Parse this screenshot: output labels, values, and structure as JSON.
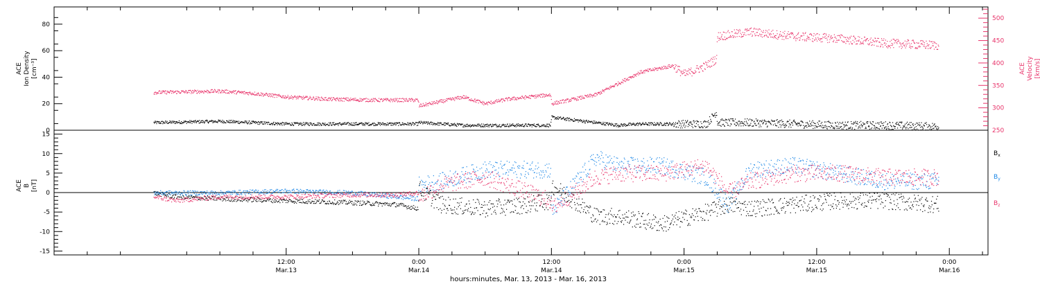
{
  "chart_data": [
    {
      "type": "scatter",
      "panel": "top",
      "ylabel_left": [
        "ACE",
        "Ion Density",
        "[cm⁻³]"
      ],
      "ylabel_right": [
        "ACE",
        "Velocity",
        "[km/s]"
      ],
      "ylim_left": [
        0,
        93
      ],
      "ylim_right": [
        250,
        525
      ],
      "yticks_left": [
        "0",
        "20",
        "40",
        "60",
        "80"
      ],
      "yticks_right": [
        "250",
        "300",
        "350",
        "400",
        "450",
        "500"
      ],
      "x_hours_since_start": [
        0,
        6,
        9,
        12,
        16,
        20,
        23.9,
        24,
        28,
        30,
        32,
        35.9,
        36,
        40,
        42,
        44,
        47,
        48,
        50,
        50.9,
        51,
        54,
        58,
        62,
        66,
        71
      ],
      "series": [
        {
          "name": "Ion Density",
          "axis": "left",
          "color": "#000000",
          "values": [
            6,
            7,
            6,
            5,
            5,
            5,
            5,
            6,
            4,
            4,
            4,
            4,
            10,
            6,
            4,
            5,
            5,
            5,
            5,
            14,
            6,
            6,
            5,
            4,
            4,
            3
          ]
        },
        {
          "name": "Velocity",
          "axis": "right",
          "color": "#e8336a",
          "values": [
            335,
            338,
            333,
            325,
            320,
            318,
            318,
            305,
            325,
            310,
            320,
            330,
            310,
            330,
            355,
            380,
            395,
            375,
            395,
            410,
            460,
            470,
            460,
            455,
            445,
            440
          ]
        }
      ]
    },
    {
      "type": "scatter",
      "panel": "bottom",
      "ylabel_left": [
        "ACE",
        "B",
        "[nT]"
      ],
      "ylim": [
        -16,
        16
      ],
      "yticks": [
        "-15",
        "-10",
        "-5",
        "0",
        "5",
        "10",
        "15"
      ],
      "legend_placement": "right",
      "x_hours_since_start": [
        0,
        2,
        6,
        12,
        18,
        22,
        23.9,
        24,
        26,
        30,
        34,
        35.9,
        36,
        40,
        42,
        46,
        50,
        52,
        54,
        58,
        62,
        66,
        71
      ],
      "series": [
        {
          "name": "Bx",
          "color": "#000000",
          "values": [
            0,
            -1,
            -1.5,
            -2,
            -2.5,
            -3,
            -4,
            1,
            -3,
            -4,
            -3,
            -2,
            2,
            -6,
            -6,
            -8,
            -5,
            -3,
            -4,
            -3,
            -2,
            -2,
            -3
          ]
        },
        {
          "name": "By",
          "color": "#1a86e6",
          "values": [
            0,
            0,
            0,
            0.5,
            0,
            -1,
            -1.5,
            2,
            3,
            6,
            6,
            6,
            -5,
            9,
            7,
            7,
            4,
            -3,
            6,
            7,
            5,
            3,
            3
          ]
        },
        {
          "name": "Bz",
          "color": "#e8336a",
          "values": [
            -1,
            -2,
            -1,
            -1,
            -0.5,
            -0.5,
            0,
            -1,
            2,
            4,
            0,
            -2,
            -4,
            4,
            5,
            5,
            7,
            0,
            3,
            5,
            5,
            4,
            4
          ]
        }
      ],
      "legend": [
        {
          "label": "B",
          "sub": "x",
          "color": "#000000"
        },
        {
          "label": "B",
          "sub": "y",
          "color": "#1a86e6"
        },
        {
          "label": "B",
          "sub": "z",
          "color": "#e8336a"
        }
      ]
    }
  ],
  "x_axis": {
    "range_hours": [
      -9,
      75.5
    ],
    "ticks": [
      {
        "hours": 12,
        "time": "12:00",
        "date": "Mar.13"
      },
      {
        "hours": 24,
        "time": "0:00",
        "date": "Mar.14"
      },
      {
        "hours": 36,
        "time": "12:00",
        "date": "Mar.14"
      },
      {
        "hours": 48,
        "time": "0:00",
        "date": "Mar.15"
      },
      {
        "hours": 60,
        "time": "12:00",
        "date": "Mar.15"
      },
      {
        "hours": 72,
        "time": "0:00",
        "date": "Mar.16"
      }
    ],
    "label": "hours:minutes, Mar. 13, 2013 - Mar. 16, 2013"
  },
  "colors": {
    "black": "#000000",
    "pink": "#e8336a",
    "blue": "#1a86e6"
  }
}
